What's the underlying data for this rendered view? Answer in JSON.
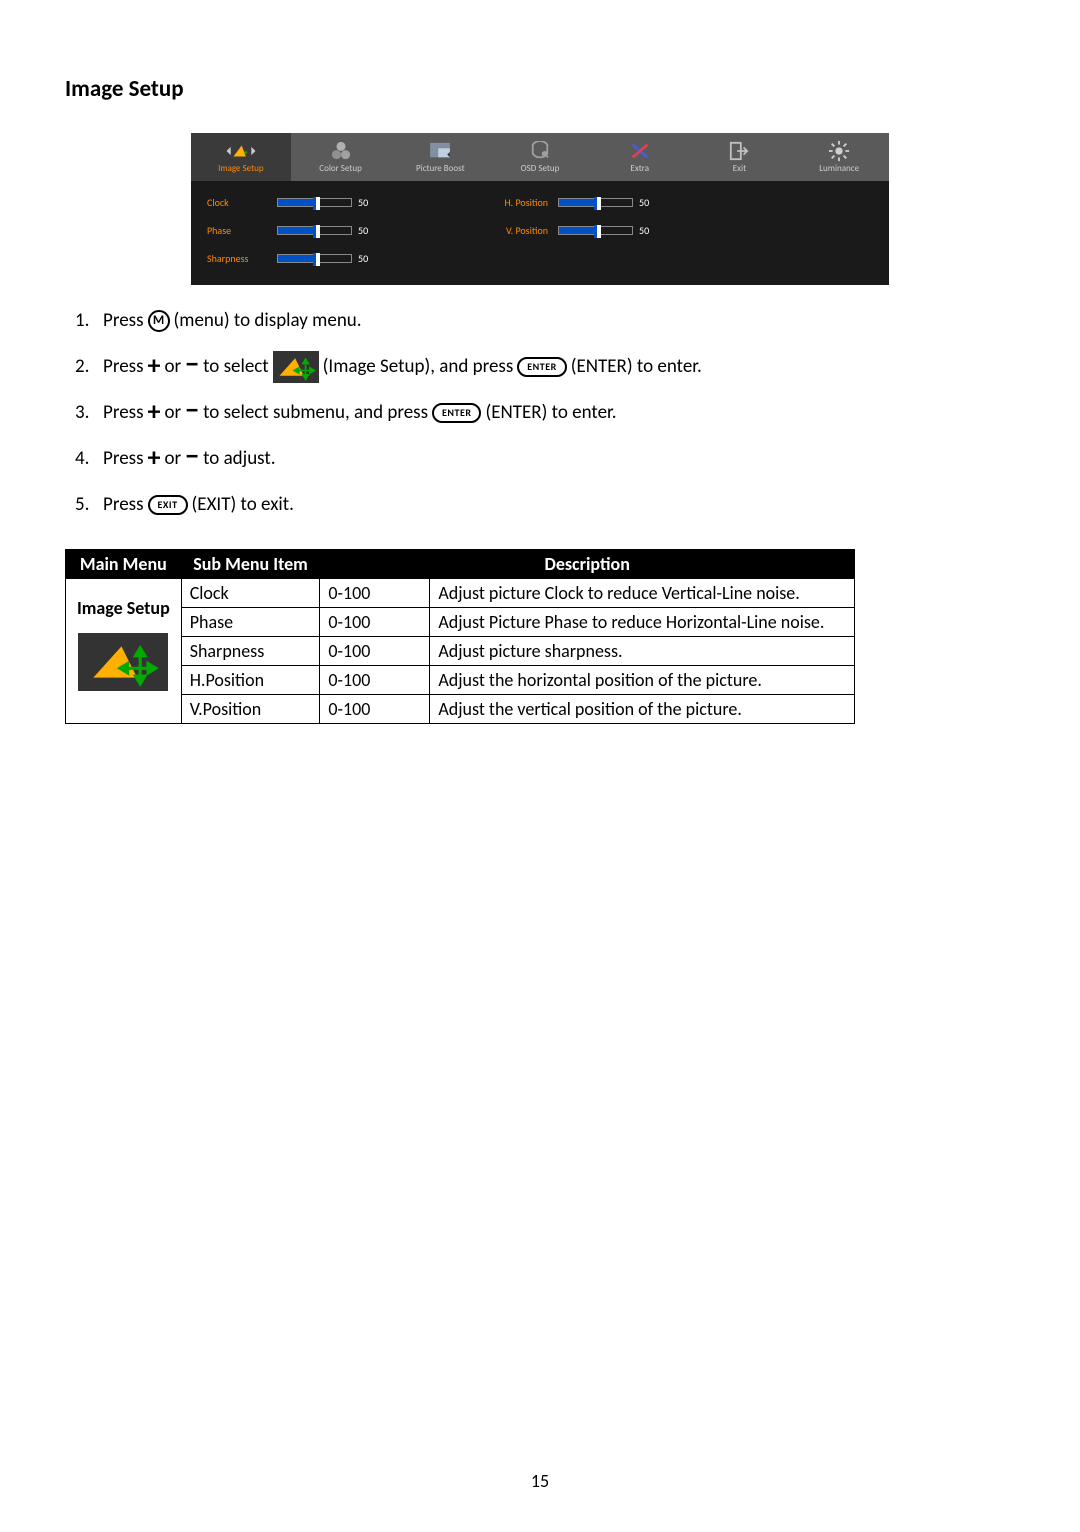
{
  "heading": "Image Setup",
  "page_number": "15",
  "osd": {
    "tabs": [
      {
        "label": "Image Setup",
        "active": true
      },
      {
        "label": "Color Setup",
        "active": false
      },
      {
        "label": "Picture Boost",
        "active": false
      },
      {
        "label": "OSD Setup",
        "active": false
      },
      {
        "label": "Extra",
        "active": false
      },
      {
        "label": "Exit",
        "active": false
      },
      {
        "label": "Luminance",
        "active": false
      }
    ],
    "left_rows": [
      {
        "label": "Clock",
        "value": "50",
        "fill": 50
      },
      {
        "label": "Phase",
        "value": "50",
        "fill": 50
      },
      {
        "label": "Sharpness",
        "value": "50",
        "fill": 50
      }
    ],
    "right_rows": [
      {
        "label": "H. Position",
        "value": "50",
        "fill": 50
      },
      {
        "label": "V. Position",
        "value": "50",
        "fill": 50
      }
    ],
    "colors": {
      "bg": "#1a1a1a",
      "tab_bg": "#5a5a5a",
      "tab_active_bg": "#3a3a3a",
      "label_active": "#ff8800",
      "slider_fill": "#0050c8"
    }
  },
  "instructions": {
    "steps": [
      {
        "n": "1.",
        "segments": [
          "Press ",
          {
            "btn": "circ",
            "t": "M"
          },
          " (menu) to display menu."
        ]
      },
      {
        "n": "2.",
        "segments": [
          "Press ",
          {
            "g": "plus"
          },
          " or ",
          {
            "g": "minus"
          },
          " to select ",
          {
            "icon": true
          },
          " (Image Setup), and press ",
          {
            "btn": "pill",
            "t": "ENTER"
          },
          " (ENTER) to enter."
        ]
      },
      {
        "n": "3.",
        "segments": [
          "Press ",
          {
            "g": "plus"
          },
          " or ",
          {
            "g": "minus"
          },
          " to select submenu, and press ",
          {
            "btn": "pill",
            "t": "ENTER"
          },
          " (ENTER) to enter."
        ]
      },
      {
        "n": "4.",
        "segments": [
          "Press ",
          {
            "g": "plus"
          },
          " or ",
          {
            "g": "minus"
          },
          " to adjust."
        ]
      },
      {
        "n": "5.",
        "segments": [
          "Press ",
          {
            "btn": "pill",
            "t": "EXIT"
          },
          " (EXIT) to exit."
        ]
      }
    ]
  },
  "table": {
    "headers": {
      "main": "Main Menu",
      "sub": "Sub Menu Item",
      "desc": "Description"
    },
    "main_label": "Image Setup",
    "rows": [
      {
        "sub": "Clock",
        "range": "0-100",
        "desc": "Adjust picture Clock to reduce Vertical-Line noise."
      },
      {
        "sub": "Phase",
        "range": "0-100",
        "desc": "Adjust Picture Phase to reduce Horizontal-Line noise."
      },
      {
        "sub": "Sharpness",
        "range": "0-100",
        "desc": "Adjust picture sharpness."
      },
      {
        "sub": "H.Position",
        "range": "0-100",
        "desc": "Adjust the horizontal position of the picture."
      },
      {
        "sub": "V.Position",
        "range": "0-100",
        "desc": "Adjust the vertical position of the picture."
      }
    ]
  },
  "icon_colors": {
    "triangle": "#ffb000",
    "accent": "#00aa00",
    "cross_a": "#e04050",
    "cross_b": "#4060e0",
    "exit": "#c0c0c0",
    "lum": "#d0d0d0"
  }
}
